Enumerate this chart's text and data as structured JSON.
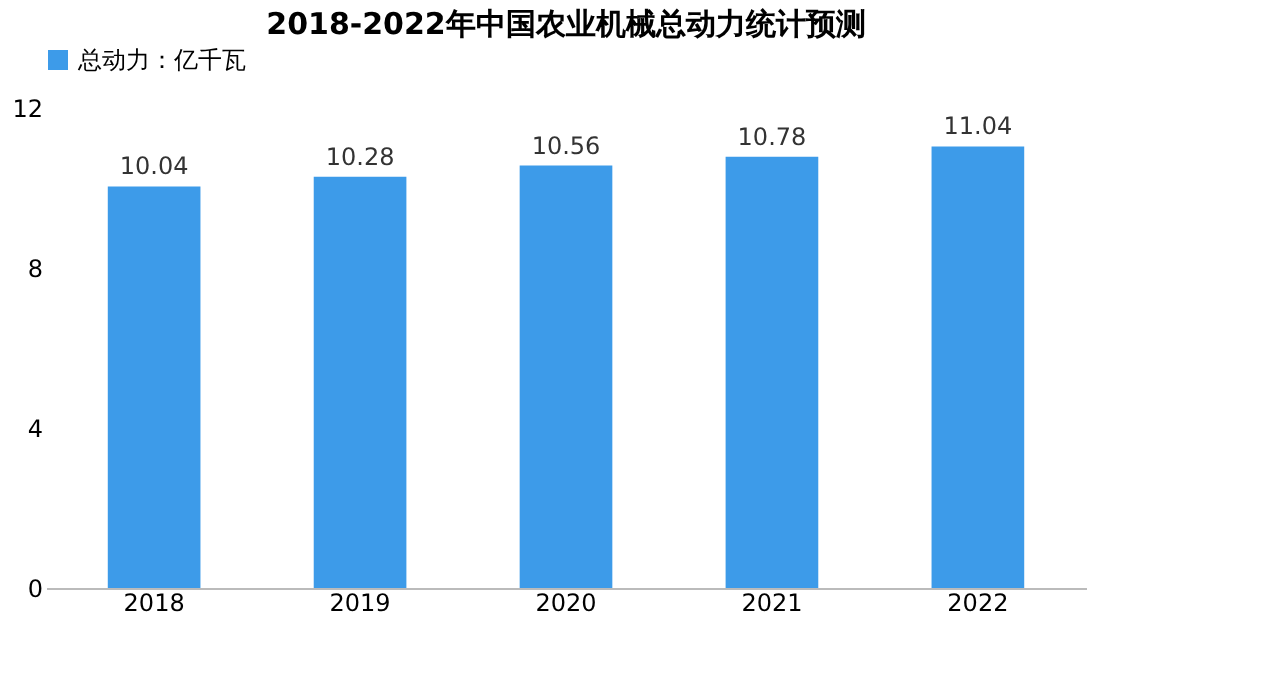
{
  "chart_data": {
    "type": "bar",
    "title": "2018-2022年中国农业机械总动力统计预测",
    "categories": [
      "2018",
      "2019",
      "2020",
      "2021",
      "2022"
    ],
    "series": [
      {
        "name": "总动力：亿千瓦",
        "color": "#3d9be9",
        "values": [
          10.04,
          10.28,
          10.56,
          10.78,
          11.04
        ]
      }
    ],
    "ylim": [
      0,
      12
    ],
    "yticks": [
      0,
      4,
      8,
      12
    ],
    "grid": false,
    "legend": "top",
    "data_labels": true
  }
}
